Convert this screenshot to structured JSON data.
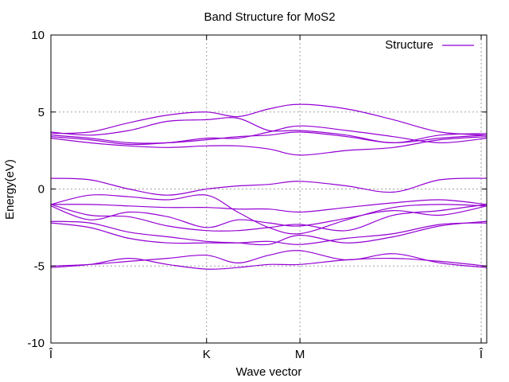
{
  "chart_data": {
    "type": "line",
    "title": "Band Structure for MoS2",
    "xlabel": "Wave vector",
    "ylabel": "Energy(eV)",
    "ylim": [
      -10,
      10
    ],
    "yticks": [
      10,
      5,
      0,
      -5,
      -10
    ],
    "xlim": [
      0,
      2.8
    ],
    "kpoints": [
      {
        "label": "Î",
        "x": 0
      },
      {
        "label": "K",
        "x": 1.0
      },
      {
        "label": "M",
        "x": 1.6
      },
      {
        "label": "Î",
        "x": 2.8
      }
    ],
    "grid": true,
    "legend": {
      "position": "top-right",
      "entries": [
        "Structure"
      ]
    },
    "series_color": "#9400d3",
    "x": [
      0,
      0.25,
      0.5,
      0.75,
      1.0,
      1.2,
      1.4,
      1.6,
      1.9,
      2.2,
      2.5,
      2.8
    ],
    "series": [
      {
        "values": [
          -5.1,
          -4.9,
          -4.5,
          -4.9,
          -5.2,
          -5.1,
          -4.9,
          -4.9,
          -4.6,
          -4.5,
          -4.7,
          -5.0
        ]
      },
      {
        "values": [
          -5.0,
          -4.9,
          -4.7,
          -4.5,
          -4.3,
          -4.8,
          -4.3,
          -4.0,
          -4.6,
          -4.2,
          -4.8,
          -5.1
        ]
      },
      {
        "values": [
          -2.1,
          -2.2,
          -2.8,
          -3.1,
          -3.4,
          -3.5,
          -3.6,
          -3.0,
          -3.5,
          -3.1,
          -2.4,
          -2.1
        ]
      },
      {
        "values": [
          -2.2,
          -2.5,
          -3.2,
          -3.5,
          -3.5,
          -3.5,
          -3.4,
          -3.6,
          -3.2,
          -2.9,
          -2.3,
          -2.2
        ]
      },
      {
        "values": [
          -1.0,
          -1.7,
          -1.8,
          -2.4,
          -2.7,
          -2.7,
          -2.5,
          -2.3,
          -2.7,
          -1.7,
          -1.4,
          -1.0
        ]
      },
      {
        "values": [
          -1.1,
          -2.0,
          -1.5,
          -1.8,
          -2.5,
          -2.0,
          -2.2,
          -2.4,
          -1.9,
          -1.4,
          -1.7,
          -1.1
        ]
      },
      {
        "values": [
          -1.0,
          -1.0,
          -1.1,
          -1.2,
          -1.2,
          -1.3,
          -1.3,
          -1.5,
          -1.2,
          -0.9,
          -0.7,
          -1.0
        ]
      },
      {
        "values": [
          -1.0,
          -0.4,
          -0.5,
          -0.7,
          -0.4,
          -1.5,
          -2.5,
          -2.9,
          -2.0,
          -1.2,
          -1.0,
          -1.1
        ]
      },
      {
        "values": [
          0.7,
          0.6,
          0.0,
          -0.4,
          0.0,
          0.2,
          0.3,
          0.5,
          0.2,
          -0.2,
          0.6,
          0.7
        ]
      },
      {
        "values": [
          3.3,
          3.0,
          2.8,
          2.7,
          2.8,
          2.8,
          2.6,
          2.2,
          2.5,
          2.7,
          3.2,
          3.4
        ]
      },
      {
        "values": [
          3.4,
          3.2,
          2.9,
          3.0,
          3.3,
          3.3,
          3.7,
          4.1,
          3.8,
          3.4,
          3.0,
          3.3
        ]
      },
      {
        "values": [
          3.5,
          3.3,
          3.0,
          3.0,
          3.2,
          3.4,
          3.5,
          3.7,
          3.4,
          3.0,
          3.3,
          3.5
        ]
      },
      {
        "values": [
          3.7,
          3.5,
          3.8,
          4.4,
          4.5,
          4.6,
          3.8,
          3.8,
          3.5,
          3.0,
          3.5,
          3.6
        ]
      },
      {
        "values": [
          3.6,
          3.7,
          4.3,
          4.8,
          5.0,
          4.7,
          5.2,
          5.5,
          5.2,
          4.5,
          3.7,
          3.5
        ]
      }
    ]
  }
}
